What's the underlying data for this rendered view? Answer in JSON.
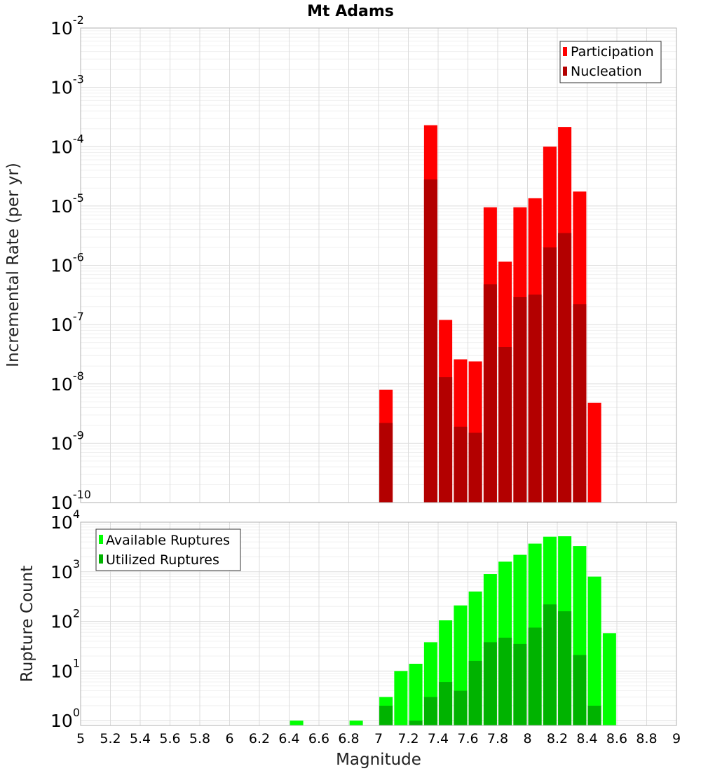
{
  "chart_data": [
    {
      "type": "bar",
      "title": "Mt Adams",
      "xlabel": "",
      "ylabel": "Incremental Rate (per yr)",
      "yscale": "log",
      "ylim": [
        1e-10,
        0.01
      ],
      "xlim": [
        5,
        9
      ],
      "grid": true,
      "legend_position": "top-right",
      "series": [
        {
          "name": "Participation",
          "color": "#ff0000",
          "x": [
            7.05,
            7.35,
            7.45,
            7.55,
            7.65,
            7.75,
            7.85,
            7.95,
            8.05,
            8.15,
            8.25,
            8.35,
            8.45
          ],
          "values": [
            8e-09,
            0.00023,
            1.2e-07,
            2.6e-08,
            2.4e-08,
            9.5e-06,
            1.15e-06,
            9.5e-06,
            1.35e-05,
            0.0001,
            0.000215,
            1.75e-05,
            4.8e-09
          ]
        },
        {
          "name": "Nucleation",
          "color": "#b30000",
          "x": [
            7.05,
            7.35,
            7.45,
            7.55,
            7.65,
            7.75,
            7.85,
            7.95,
            8.05,
            8.15,
            8.25,
            8.35
          ],
          "values": [
            2.2e-09,
            2.8e-05,
            1.3e-08,
            1.9e-09,
            1.5e-09,
            4.8e-07,
            4.2e-08,
            2.9e-07,
            3.2e-07,
            2e-06,
            3.5e-06,
            2.2e-07
          ]
        }
      ]
    },
    {
      "type": "bar",
      "title": "",
      "xlabel": "Magnitude",
      "ylabel": "Rupture Count",
      "yscale": "log",
      "ylim": [
        0.8,
        10000.0
      ],
      "xlim": [
        5,
        9
      ],
      "grid": true,
      "legend_position": "top-left",
      "series": [
        {
          "name": "Available Ruptures",
          "color": "#00ff00",
          "x": [
            6.45,
            6.85,
            7.05,
            7.15,
            7.25,
            7.35,
            7.45,
            7.55,
            7.65,
            7.75,
            7.85,
            7.95,
            8.05,
            8.15,
            8.25,
            8.35,
            8.45,
            8.55
          ],
          "values": [
            1,
            1,
            3,
            10,
            14,
            38,
            105,
            210,
            400,
            900,
            1600,
            2200,
            3700,
            5100,
            5200,
            3300,
            800,
            58
          ]
        },
        {
          "name": "Utilized Ruptures",
          "color": "#00b300",
          "x": [
            7.05,
            7.25,
            7.35,
            7.45,
            7.55,
            7.65,
            7.75,
            7.85,
            7.95,
            8.05,
            8.15,
            8.25,
            8.35,
            8.45
          ],
          "values": [
            2,
            1,
            3,
            6,
            4,
            16,
            38,
            47,
            35,
            75,
            220,
            160,
            21,
            2
          ]
        }
      ]
    }
  ],
  "top": {
    "title": "Mt Adams",
    "ylabel": "Incremental Rate (per yr)",
    "ytick_base": "10",
    "yticks": [
      "-10",
      "-9",
      "-8",
      "-7",
      "-6",
      "-5",
      "-4",
      "-3",
      "-2"
    ],
    "legend": [
      "Participation",
      "Nucleation"
    ]
  },
  "bottom": {
    "ylabel": "Rupture Count",
    "xlabel": "Magnitude",
    "ytick_base": "10",
    "yticks": [
      "0",
      "1",
      "2",
      "3",
      "4"
    ],
    "legend": [
      "Available Ruptures",
      "Utilized Ruptures"
    ],
    "xticks": [
      "5",
      "5.2",
      "5.4",
      "5.6",
      "5.8",
      "6",
      "6.2",
      "6.4",
      "6.6",
      "6.8",
      "7",
      "7.2",
      "7.4",
      "7.6",
      "7.8",
      "8",
      "8.2",
      "8.4",
      "8.6",
      "8.8",
      "9"
    ]
  }
}
